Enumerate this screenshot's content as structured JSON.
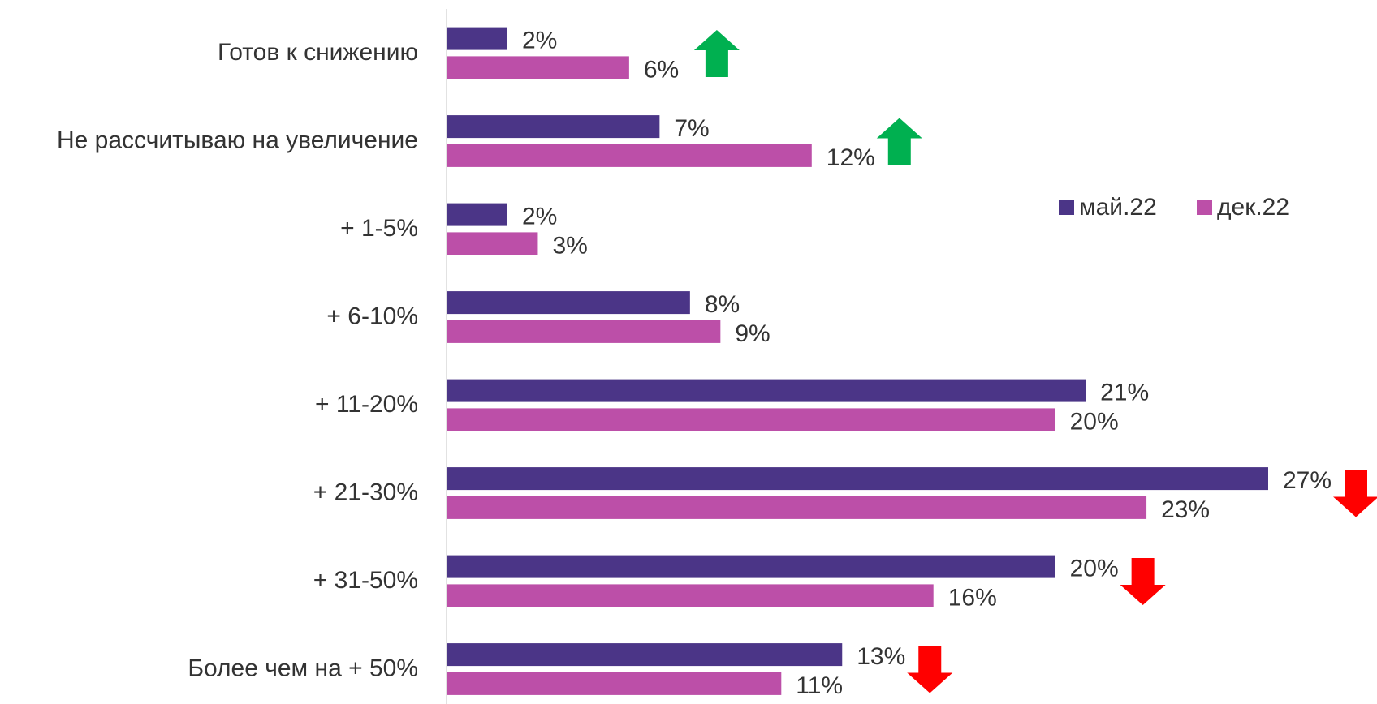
{
  "chart_data": {
    "type": "bar",
    "orientation": "horizontal",
    "categories": [
      "Готов к снижению",
      "Не рассчитываю на увеличение",
      "+ 1-5%",
      "+ 6-10%",
      "+ 11-20%",
      "+ 21-30%",
      "+ 31-50%",
      "Более чем на + 50%"
    ],
    "series": [
      {
        "name": "май.22",
        "color": "#4b3587",
        "values": [
          2,
          7,
          2,
          8,
          21,
          27,
          20,
          13
        ],
        "value_labels": [
          "2%",
          "7%",
          "2%",
          "8%",
          "21%",
          "27%",
          "20%",
          "13%"
        ]
      },
      {
        "name": "дек.22",
        "color": "#bc4fa8",
        "values": [
          6,
          12,
          3,
          9,
          20,
          23,
          16,
          11
        ],
        "value_labels": [
          "6%",
          "12%",
          "3%",
          "9%",
          "20%",
          "23%",
          "16%",
          "11%"
        ]
      }
    ],
    "trends": [
      "up",
      "up",
      null,
      null,
      null,
      "down",
      "down",
      "down"
    ],
    "trend_colors": {
      "up": "#00b050",
      "down": "#ff0000"
    },
    "legend": "upper right"
  }
}
